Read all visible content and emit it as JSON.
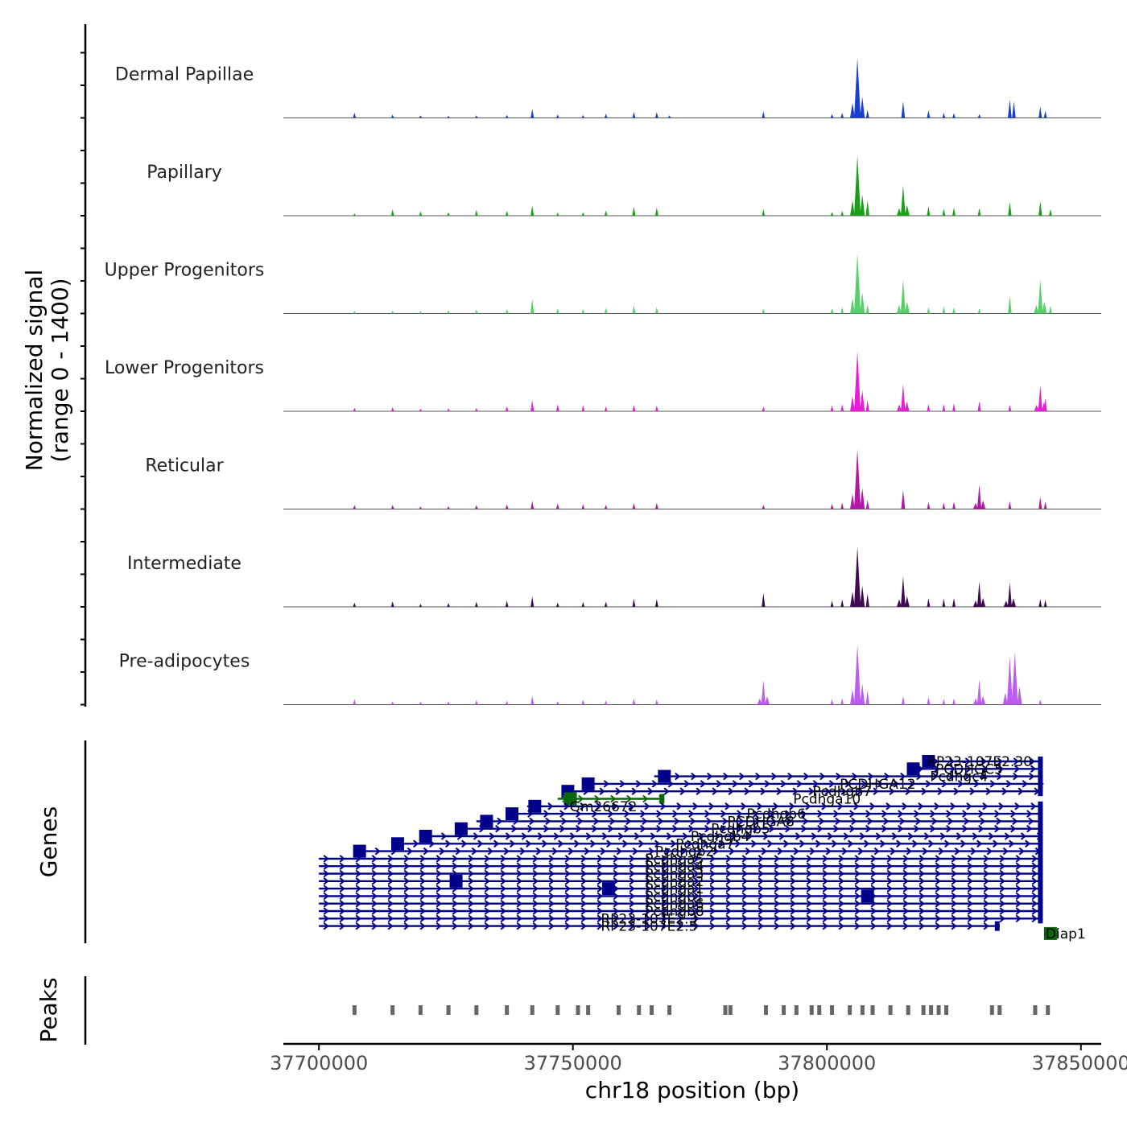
{
  "chart_data": {
    "type": "coverage-tracks",
    "ylabel": "Normalized signal",
    "ylabel_range": "(range 0 - 1400)",
    "xlabel": "chr18 position (bp)",
    "xlim": [
      37693000,
      37854000
    ],
    "x_ticks": [
      37700000,
      37750000,
      37800000,
      37850000
    ],
    "x_tick_labels": [
      "37700000",
      "37750000",
      "37800000",
      "37850000"
    ],
    "y_range": [
      0,
      1400
    ],
    "tracks": [
      {
        "name": "Dermal Papillae",
        "color": "#1a3fcc",
        "peaks": [
          [
            37707000,
            120
          ],
          [
            37714500,
            80
          ],
          [
            37720000,
            60
          ],
          [
            37725500,
            50
          ],
          [
            37731000,
            60
          ],
          [
            37737000,
            70
          ],
          [
            37742000,
            210
          ],
          [
            37747000,
            80
          ],
          [
            37752000,
            70
          ],
          [
            37756500,
            100
          ],
          [
            37762000,
            140
          ],
          [
            37766500,
            130
          ],
          [
            37769000,
            60
          ],
          [
            37787500,
            150
          ],
          [
            37801000,
            90
          ],
          [
            37803000,
            120
          ],
          [
            37806000,
            1380
          ],
          [
            37808000,
            190
          ],
          [
            37815000,
            380
          ],
          [
            37820000,
            180
          ],
          [
            37823000,
            120
          ],
          [
            37825000,
            110
          ],
          [
            37830000,
            90
          ],
          [
            37836000,
            420
          ],
          [
            37836800,
            380
          ],
          [
            37842000,
            260
          ],
          [
            37843000,
            160
          ]
        ]
      },
      {
        "name": "Papillary",
        "color": "#18a018",
        "peaks": [
          [
            37707000,
            50
          ],
          [
            37714500,
            150
          ],
          [
            37720000,
            100
          ],
          [
            37725500,
            80
          ],
          [
            37731000,
            130
          ],
          [
            37737000,
            110
          ],
          [
            37742000,
            230
          ],
          [
            37747000,
            70
          ],
          [
            37752000,
            80
          ],
          [
            37756500,
            120
          ],
          [
            37762000,
            210
          ],
          [
            37766500,
            190
          ],
          [
            37787500,
            150
          ],
          [
            37801000,
            90
          ],
          [
            37803000,
            110
          ],
          [
            37806000,
            1380
          ],
          [
            37808000,
            350
          ],
          [
            37815000,
            700
          ],
          [
            37820000,
            220
          ],
          [
            37823000,
            160
          ],
          [
            37825000,
            190
          ],
          [
            37830000,
            170
          ],
          [
            37836000,
            310
          ],
          [
            37842000,
            330
          ],
          [
            37844000,
            150
          ]
        ]
      },
      {
        "name": "Upper Progenitors",
        "color": "#56d16a",
        "peaks": [
          [
            37707000,
            60
          ],
          [
            37714500,
            70
          ],
          [
            37720000,
            60
          ],
          [
            37725500,
            80
          ],
          [
            37731000,
            90
          ],
          [
            37737000,
            100
          ],
          [
            37742000,
            340
          ],
          [
            37747000,
            120
          ],
          [
            37752000,
            100
          ],
          [
            37756500,
            130
          ],
          [
            37762000,
            180
          ],
          [
            37766500,
            150
          ],
          [
            37787500,
            110
          ],
          [
            37801000,
            120
          ],
          [
            37803000,
            150
          ],
          [
            37806000,
            1380
          ],
          [
            37808000,
            210
          ],
          [
            37815000,
            780
          ],
          [
            37820000,
            150
          ],
          [
            37823000,
            160
          ],
          [
            37825000,
            140
          ],
          [
            37830000,
            120
          ],
          [
            37836000,
            390
          ],
          [
            37842000,
            780
          ],
          [
            37844000,
            180
          ]
        ]
      },
      {
        "name": "Lower Progenitors",
        "color": "#e61fd6",
        "peaks": [
          [
            37707000,
            80
          ],
          [
            37714500,
            100
          ],
          [
            37720000,
            60
          ],
          [
            37725500,
            70
          ],
          [
            37731000,
            80
          ],
          [
            37737000,
            120
          ],
          [
            37742000,
            260
          ],
          [
            37747000,
            160
          ],
          [
            37752000,
            140
          ],
          [
            37756500,
            110
          ],
          [
            37762000,
            150
          ],
          [
            37766500,
            130
          ],
          [
            37787500,
            110
          ],
          [
            37801000,
            140
          ],
          [
            37803000,
            160
          ],
          [
            37806000,
            1380
          ],
          [
            37808000,
            260
          ],
          [
            37815000,
            630
          ],
          [
            37820000,
            170
          ],
          [
            37823000,
            160
          ],
          [
            37825000,
            180
          ],
          [
            37830000,
            230
          ],
          [
            37836000,
            150
          ],
          [
            37842000,
            590
          ],
          [
            37843000,
            300
          ]
        ]
      },
      {
        "name": "Reticular",
        "color": "#b218a6",
        "peaks": [
          [
            37707000,
            90
          ],
          [
            37714500,
            100
          ],
          [
            37720000,
            60
          ],
          [
            37725500,
            70
          ],
          [
            37731000,
            90
          ],
          [
            37737000,
            110
          ],
          [
            37742000,
            190
          ],
          [
            37747000,
            130
          ],
          [
            37752000,
            110
          ],
          [
            37756500,
            100
          ],
          [
            37762000,
            140
          ],
          [
            37766500,
            150
          ],
          [
            37787500,
            100
          ],
          [
            37801000,
            120
          ],
          [
            37803000,
            150
          ],
          [
            37806000,
            1380
          ],
          [
            37808000,
            210
          ],
          [
            37815000,
            440
          ],
          [
            37820000,
            160
          ],
          [
            37823000,
            150
          ],
          [
            37825000,
            170
          ],
          [
            37830000,
            560
          ],
          [
            37836000,
            180
          ],
          [
            37842000,
            280
          ],
          [
            37843000,
            170
          ]
        ]
      },
      {
        "name": "Intermediate",
        "color": "#3e0a52",
        "peaks": [
          [
            37707000,
            100
          ],
          [
            37714500,
            130
          ],
          [
            37720000,
            70
          ],
          [
            37725500,
            90
          ],
          [
            37731000,
            120
          ],
          [
            37737000,
            140
          ],
          [
            37742000,
            240
          ],
          [
            37747000,
            100
          ],
          [
            37752000,
            110
          ],
          [
            37756500,
            120
          ],
          [
            37762000,
            190
          ],
          [
            37766500,
            180
          ],
          [
            37787500,
            320
          ],
          [
            37801000,
            140
          ],
          [
            37803000,
            170
          ],
          [
            37806000,
            1380
          ],
          [
            37808000,
            300
          ],
          [
            37815000,
            700
          ],
          [
            37820000,
            200
          ],
          [
            37823000,
            190
          ],
          [
            37825000,
            200
          ],
          [
            37830000,
            580
          ],
          [
            37836000,
            560
          ],
          [
            37842000,
            180
          ],
          [
            37843000,
            160
          ]
        ]
      },
      {
        "name": "Pre-adipocytes",
        "color": "#bd5cf0",
        "peaks": [
          [
            37707000,
            130
          ],
          [
            37714500,
            80
          ],
          [
            37720000,
            70
          ],
          [
            37725500,
            80
          ],
          [
            37731000,
            110
          ],
          [
            37737000,
            90
          ],
          [
            37742000,
            200
          ],
          [
            37747000,
            80
          ],
          [
            37752000,
            110
          ],
          [
            37756500,
            100
          ],
          [
            37762000,
            140
          ],
          [
            37766500,
            120
          ],
          [
            37787500,
            560
          ],
          [
            37801000,
            130
          ],
          [
            37803000,
            150
          ],
          [
            37806000,
            1380
          ],
          [
            37808000,
            330
          ],
          [
            37815000,
            200
          ],
          [
            37820000,
            180
          ],
          [
            37823000,
            130
          ],
          [
            37825000,
            140
          ],
          [
            37830000,
            580
          ],
          [
            37836000,
            1100
          ],
          [
            37837000,
            1200
          ],
          [
            37842000,
            120
          ]
        ]
      }
    ],
    "genes_track": {
      "label": "Genes",
      "transcripts": [
        {
          "start": 37820000,
          "end": 37842500,
          "exon": 37820000,
          "color": "#00008b"
        },
        {
          "start": 37817000,
          "end": 37842500,
          "exon": 37817000,
          "color": "#00008b"
        },
        {
          "start": 37766000,
          "end": 37842500,
          "exon": 37768000,
          "color": "#00008b"
        },
        {
          "start": 37752000,
          "end": 37842500,
          "exon": 37753000,
          "color": "#00008b"
        },
        {
          "start": 37748000,
          "end": 37842500,
          "exon": 37749000,
          "color": "#00008b"
        },
        {
          "start": 37747000,
          "end": 37768000,
          "exon": 37749500,
          "color": "#0a660a"
        },
        {
          "start": 37741000,
          "end": 37842500,
          "exon": 37742500,
          "color": "#00008b"
        },
        {
          "start": 37737000,
          "end": 37842500,
          "exon": 37738000,
          "color": "#00008b"
        },
        {
          "start": 37731000,
          "end": 37842500,
          "exon": 37733000,
          "color": "#00008b"
        },
        {
          "start": 37727500,
          "end": 37842500,
          "exon": 37728000,
          "color": "#00008b"
        },
        {
          "start": 37720000,
          "end": 37842500,
          "exon": 37721000,
          "color": "#00008b"
        },
        {
          "start": 37714500,
          "end": 37842500,
          "exon": 37715500,
          "color": "#00008b"
        },
        {
          "start": 37707000,
          "end": 37842500,
          "exon": 37708000,
          "color": "#00008b"
        },
        {
          "start": 37700000,
          "end": 37842500,
          "exon": null,
          "color": "#00008b"
        },
        {
          "start": 37700000,
          "end": 37842500,
          "exon": null,
          "color": "#00008b"
        },
        {
          "start": 37700000,
          "end": 37842500,
          "exon": null,
          "color": "#00008b"
        },
        {
          "start": 37700000,
          "end": 37842500,
          "exon": 37727000,
          "color": "#00008b"
        },
        {
          "start": 37700000,
          "end": 37842500,
          "exon": 37757000,
          "color": "#00008b"
        },
        {
          "start": 37700000,
          "end": 37842500,
          "exon": 37808000,
          "color": "#00008b"
        },
        {
          "start": 37700000,
          "end": 37842500,
          "exon": null,
          "color": "#00008b"
        },
        {
          "start": 37700000,
          "end": 37842500,
          "exon": null,
          "color": "#00008b"
        },
        {
          "start": 37700000,
          "end": 37842500,
          "exon": null,
          "color": "#00008b"
        },
        {
          "start": 37700000,
          "end": 37834000,
          "exon": null,
          "color": "#00008b"
        },
        {
          "start": 37843500,
          "end": 37845500,
          "exon": 37844000,
          "color": "#0a660a"
        }
      ],
      "labels": [
        {
          "text": "RP23-107E2.30",
          "x": 37830000,
          "row": 0
        },
        {
          "text": "PCDHGC5",
          "x": 37828000,
          "row": 1
        },
        {
          "text": "Pcdhgc4",
          "x": 37826000,
          "row": 2
        },
        {
          "text": "PCDHGA12",
          "x": 37810000,
          "row": 3
        },
        {
          "text": "Pcdhgb7",
          "x": 37803000,
          "row": 4
        },
        {
          "text": "Pcdhga10",
          "x": 37800000,
          "row": 5
        },
        {
          "text": "Gm26672",
          "x": 37756000,
          "row": 6
        },
        {
          "text": "Pcdhgb6",
          "x": 37790000,
          "row": 7
        },
        {
          "text": "PCDHGA8",
          "x": 37787000,
          "row": 8
        },
        {
          "text": "Pcdhgb5",
          "x": 37783000,
          "row": 9
        },
        {
          "text": "Pcdhgb4",
          "x": 37779000,
          "row": 10
        },
        {
          "text": "Pcdhga7",
          "x": 37776000,
          "row": 11
        },
        {
          "text": "Pcdhgb2",
          "x": 37772000,
          "row": 12
        },
        {
          "text": "Pcdhga5",
          "x": 37770000,
          "row": 13
        },
        {
          "text": "Pcdhga4",
          "x": 37770000,
          "row": 14
        },
        {
          "text": "Pcdhga3",
          "x": 37770000,
          "row": 15
        },
        {
          "text": "Pcdhga2",
          "x": 37770000,
          "row": 16
        },
        {
          "text": "Pcdhga1",
          "x": 37770000,
          "row": 17
        },
        {
          "text": "Pcdhgb1",
          "x": 37770000,
          "row": 18
        },
        {
          "text": "Pcdhga6",
          "x": 37770000,
          "row": 19
        },
        {
          "text": "Pcdhgb8",
          "x": 37770000,
          "row": 20
        },
        {
          "text": "RP23-107E2.3",
          "x": 37765000,
          "row": 21
        },
        {
          "text": "RP23-107E2.5",
          "x": 37765000,
          "row": 22
        },
        {
          "text": "Diap1",
          "x": 37847000,
          "row": 23
        }
      ]
    },
    "peaks_track": {
      "label": "Peaks",
      "color": "#666666",
      "positions": [
        37707000,
        37714500,
        37720000,
        37725500,
        37731000,
        37737000,
        37742000,
        37747000,
        37751000,
        37753000,
        37759000,
        37763000,
        37765500,
        37769000,
        37780000,
        37781000,
        37788000,
        37791500,
        37794000,
        37797000,
        37798500,
        37801000,
        37804500,
        37807000,
        37809000,
        37812500,
        37816000,
        37819000,
        37820500,
        37822000,
        37823500,
        37832500,
        37834000,
        37841000,
        37843500
      ]
    }
  }
}
